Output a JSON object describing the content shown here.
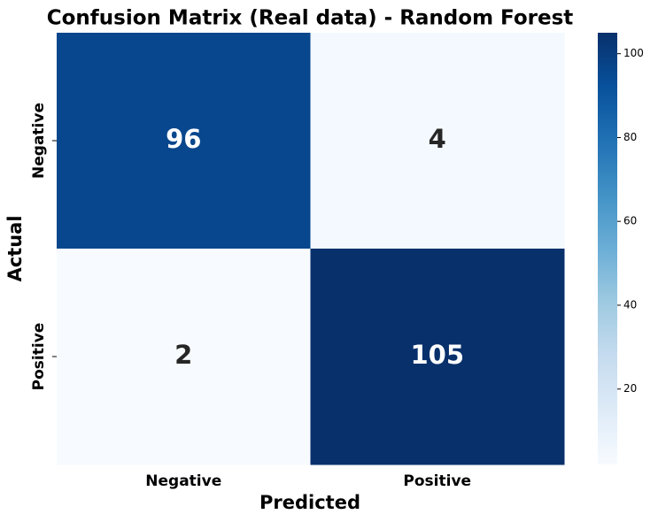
{
  "chart_data": {
    "type": "heatmap",
    "title": "Confusion Matrix (Real data) - Random Forest",
    "xlabel": "Predicted",
    "ylabel": "Actual",
    "x_categories": [
      "Negative",
      "Positive"
    ],
    "y_categories": [
      "Negative",
      "Positive"
    ],
    "values": [
      [
        96,
        4
      ],
      [
        2,
        105
      ]
    ],
    "colormap": "Blues",
    "clim": [
      2,
      105
    ],
    "cticks": [
      20,
      40,
      60,
      80,
      100
    ]
  }
}
